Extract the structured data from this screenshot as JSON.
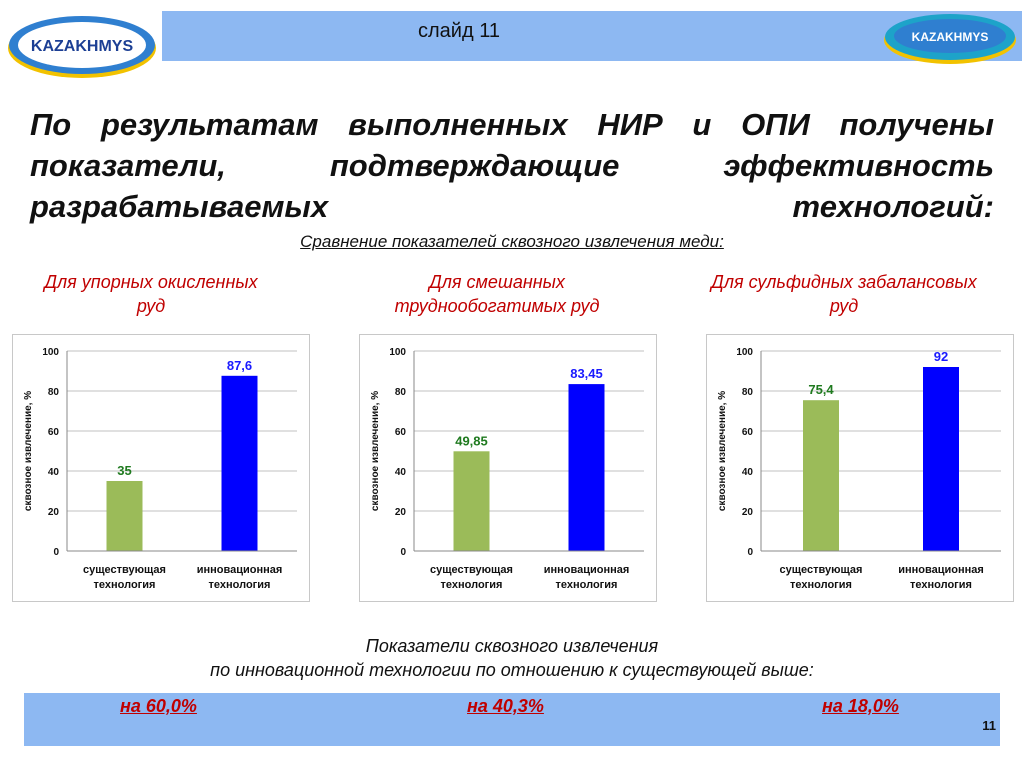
{
  "header": {
    "slide_label": "слайд 11",
    "logo_text": "KAZAKHMYS"
  },
  "title": "По результатам выполненных НИР и ОПИ получены показатели, подтверждающие эффективность разрабатываемых технологий:",
  "subtitle": "Сравнение показателей сквозного извлечения меди:",
  "categories": [
    {
      "line1": "Для упорных окисленных",
      "line2": "руд"
    },
    {
      "line1": "Для смешанных",
      "line2": "труднообогатимых руд"
    },
    {
      "line1": "Для сульфидных забалансовых",
      "line2": "руд"
    }
  ],
  "chart_data": [
    {
      "type": "bar",
      "ylabel": "сквозное извлечение, %",
      "ylim": [
        0,
        100
      ],
      "yticks": [
        0,
        20,
        40,
        60,
        80,
        100
      ],
      "categories": [
        "существующая технология",
        "инновационная технология"
      ],
      "values": [
        35,
        87.6
      ],
      "value_labels": [
        "35",
        "87,6"
      ],
      "colors": [
        "#9bbb59",
        "#0000ff"
      ],
      "label_colors": [
        "#1f7a1f",
        "#1a1aff"
      ]
    },
    {
      "type": "bar",
      "ylabel": "сквозное извлечение, %",
      "ylim": [
        0,
        100
      ],
      "yticks": [
        0,
        20,
        40,
        60,
        80,
        100
      ],
      "categories": [
        "существующая технология",
        "инновационная технология"
      ],
      "values": [
        49.85,
        83.45
      ],
      "value_labels": [
        "49,85",
        "83,45"
      ],
      "colors": [
        "#9bbb59",
        "#0000ff"
      ],
      "label_colors": [
        "#1f7a1f",
        "#1a1aff"
      ]
    },
    {
      "type": "bar",
      "ylabel": "сквозное извлечение, %",
      "ylim": [
        0,
        100
      ],
      "yticks": [
        0,
        20,
        40,
        60,
        80,
        100
      ],
      "categories": [
        "существующая технология",
        "инновационная технология"
      ],
      "values": [
        75.4,
        92
      ],
      "value_labels": [
        "75,4",
        "92"
      ],
      "colors": [
        "#9bbb59",
        "#0000ff"
      ],
      "label_colors": [
        "#1f7a1f",
        "#1a1aff"
      ]
    }
  ],
  "footer": {
    "line1": "Показатели сквозного извлечения",
    "line2": "по инновационной технологии по отношению к существующей выше:",
    "percents": [
      "на 60,0%",
      "на 40,3%",
      "на 18,0%"
    ],
    "page_number": "11"
  }
}
